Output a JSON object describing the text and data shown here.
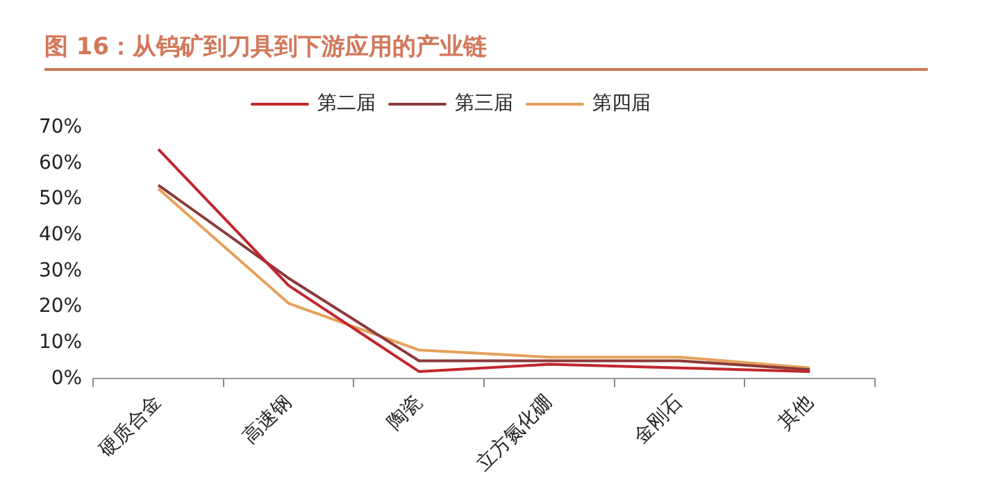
{
  "chart_data": {
    "type": "line",
    "title": "图 16：从钨矿到刀具到下游应用的产业链",
    "categories": [
      "硬质合金",
      "高速钢",
      "陶瓷",
      "立方氮化硼",
      "金刚石",
      "其他"
    ],
    "series": [
      {
        "name": "第二届",
        "color": "#c0272d",
        "values": [
          64,
          26,
          2,
          4,
          3,
          2
        ]
      },
      {
        "name": "第三届",
        "color": "#8b3a3a",
        "values": [
          54,
          28,
          5,
          5,
          5,
          2.5
        ]
      },
      {
        "name": "第四届",
        "color": "#e6a05a",
        "values": [
          53,
          21,
          8,
          6,
          6,
          3
        ]
      }
    ],
    "ylim": [
      0,
      70
    ],
    "yticks": [
      {
        "value": 0,
        "label": "0%"
      },
      {
        "value": 10,
        "label": "10%"
      },
      {
        "value": 20,
        "label": "20%"
      },
      {
        "value": 30,
        "label": "30%"
      },
      {
        "value": 40,
        "label": "40%"
      },
      {
        "value": 50,
        "label": "50%"
      },
      {
        "value": 60,
        "label": "60%"
      },
      {
        "value": 70,
        "label": "70%"
      }
    ],
    "grid": false,
    "legend": "top",
    "marker": "none",
    "line_style": "solid"
  }
}
